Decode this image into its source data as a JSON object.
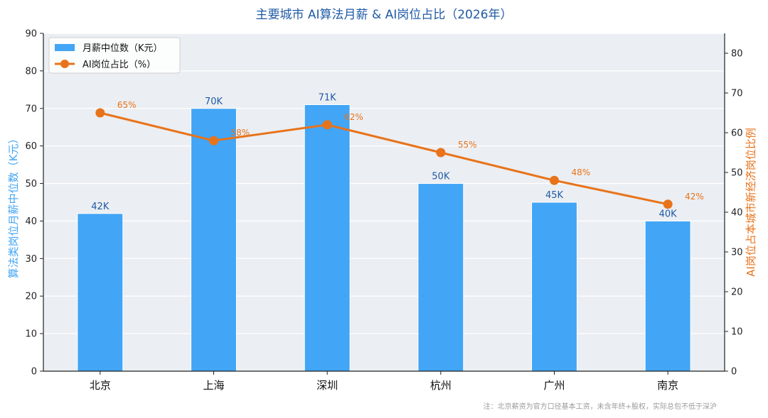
{
  "chart_data": {
    "type": "bar",
    "title": "主要城市 AI算法月薪 & AI岗位占比（2026年）",
    "categories": [
      "北京",
      "上海",
      "深圳",
      "杭州",
      "广州",
      "南京"
    ],
    "series": [
      {
        "name": "月薪中位数（K元）",
        "type": "bar",
        "axis": "left",
        "values": [
          42,
          70,
          71,
          50,
          45,
          40
        ],
        "labels": [
          "42K",
          "70K",
          "71K",
          "50K",
          "45K",
          "40K"
        ],
        "color": "#42a5f5"
      },
      {
        "name": "AI岗位占比（%）",
        "type": "line",
        "axis": "right",
        "values": [
          65,
          58,
          62,
          55,
          48,
          42
        ],
        "labels": [
          "65%",
          "58%",
          "62%",
          "55%",
          "48%",
          "42%"
        ],
        "color": "#e8731a"
      }
    ],
    "ylabel_left": "算法类岗位月薪中位数（K元）",
    "ylabel_right": "AI岗位占本城市新经济岗位比例",
    "ylim_left": [
      0,
      90
    ],
    "yticks_left": [
      0,
      10,
      20,
      30,
      40,
      50,
      60,
      70,
      80,
      90
    ],
    "ylim_right": [
      0,
      85
    ],
    "yticks_right": [
      0,
      10,
      20,
      30,
      40,
      50,
      60,
      70,
      80
    ],
    "grid": true,
    "legend": "top-left",
    "note": "注：北京薪资为官方口径基本工资，未含年终+股权，实际总包不低于深沪",
    "colors": {
      "background": "#ebeef2",
      "bar": "#42a5f5",
      "line": "#e8731a",
      "title": "#1f5aa6",
      "bar_label": "#1f5aa6"
    }
  }
}
